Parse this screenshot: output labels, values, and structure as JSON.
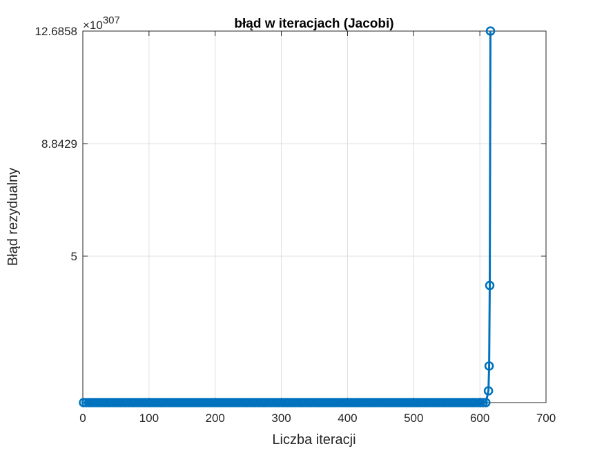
{
  "chart_data": {
    "type": "line",
    "title": "błąd w iteracjach (Jacobi)",
    "xlabel": "Liczba iteracji",
    "ylabel": "Błąd rezydualny",
    "y_exponent_base": "×10",
    "y_exponent_power": "307",
    "xlim": [
      0,
      700
    ],
    "ylim": [
      0,
      12.6858
    ],
    "x_ticks": [
      0,
      100,
      200,
      300,
      400,
      500,
      600,
      700
    ],
    "x_tick_labels": [
      "0",
      "100",
      "200",
      "300",
      "400",
      "500",
      "600",
      "700"
    ],
    "y_ticks": [
      5,
      8.8429,
      12.6858
    ],
    "y_tick_labels": [
      "5",
      "8.8429",
      "12.6858"
    ],
    "grid": true,
    "colors": {
      "series": "#0072BD",
      "grid": "#dfdfdf",
      "axes": "#262626"
    },
    "marker": "circle",
    "series": [
      {
        "baseline_points": {
          "x_start": 1,
          "x_end": 609,
          "step": 4,
          "y": 0
        },
        "tail_points": [
          {
            "x": 613,
            "y": 0.4
          },
          {
            "x": 614,
            "y": 1.25
          },
          {
            "x": 615,
            "y": 4.0
          },
          {
            "x": 616,
            "y": 12.6858
          }
        ]
      }
    ]
  }
}
